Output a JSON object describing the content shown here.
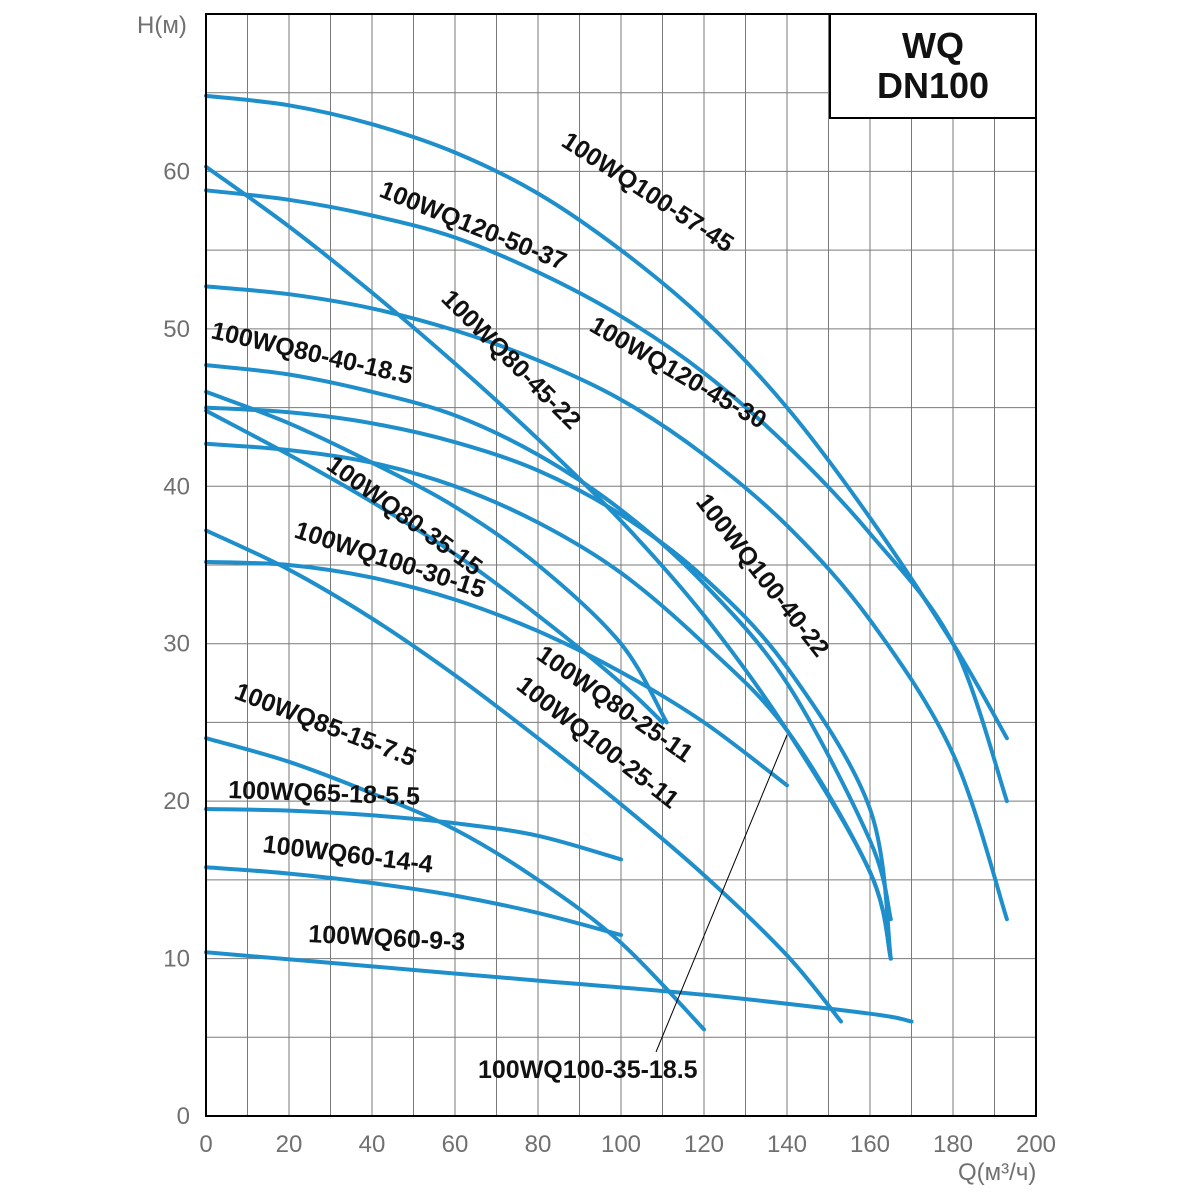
{
  "chart_data": {
    "type": "line",
    "title": "WQ",
    "subtitle": "DN100",
    "xlabel": "Q(м³/ч)",
    "ylabel": "H(м)",
    "xlim": [
      0,
      200
    ],
    "ylim": [
      0,
      70
    ],
    "x_ticks": [
      0,
      20,
      40,
      60,
      80,
      100,
      120,
      140,
      160,
      180,
      200
    ],
    "y_ticks": [
      0,
      10,
      20,
      30,
      40,
      50,
      60
    ],
    "grid": true,
    "colors": {
      "series": "#1f8fcc",
      "grid": "#7a7a7a",
      "axis": "#000000"
    },
    "series": [
      {
        "name": "100WQ100-57-45",
        "x": [
          0,
          20,
          40,
          60,
          80,
          100,
          120,
          140,
          160,
          180,
          193
        ],
        "y": [
          64.8,
          64.2,
          63.0,
          61.2,
          58.6,
          55.0,
          50.6,
          45.0,
          38.0,
          30.0,
          24.0
        ]
      },
      {
        "name": "100WQ120-50-37",
        "x": [
          0,
          20,
          40,
          60,
          80,
          100,
          120,
          140,
          160,
          180,
          193
        ],
        "y": [
          58.8,
          58.2,
          57.2,
          55.8,
          53.6,
          50.8,
          47.2,
          42.6,
          37.0,
          30.0,
          20.0
        ]
      },
      {
        "name": "100WQ80-45-22",
        "x": [
          0,
          20,
          40,
          60,
          80,
          100,
          120,
          140,
          160,
          165
        ],
        "y": [
          60.3,
          56.5,
          52.3,
          47.8,
          43.0,
          37.8,
          31.8,
          24.5,
          15.5,
          10.0
        ]
      },
      {
        "name": "100WQ120-45-30",
        "x": [
          0,
          20,
          40,
          60,
          80,
          100,
          120,
          140,
          160,
          180,
          193
        ],
        "y": [
          52.7,
          52.2,
          51.3,
          49.9,
          48.0,
          45.5,
          42.0,
          37.5,
          31.5,
          23.0,
          12.5
        ]
      },
      {
        "name": "100WQ80-40-18.5",
        "x": [
          0,
          20,
          40,
          60,
          80,
          100,
          120,
          140,
          160,
          165
        ],
        "y": [
          47.7,
          47.1,
          46.0,
          44.5,
          42.0,
          38.5,
          33.8,
          27.5,
          17.5,
          12.5
        ]
      },
      {
        "name": "100WQ100-40-22",
        "x": [
          0,
          20,
          40,
          60,
          80,
          100,
          120,
          140,
          160,
          165
        ],
        "y": [
          45.0,
          44.7,
          44.0,
          42.8,
          41.0,
          38.2,
          34.2,
          28.5,
          19.5,
          10.0
        ]
      },
      {
        "name": "100WQ100-35-18.5",
        "x": [
          0,
          20,
          40,
          60,
          80,
          100,
          120,
          140,
          160,
          165
        ],
        "y": [
          42.7,
          42.3,
          41.5,
          40.0,
          37.7,
          34.5,
          30.0,
          24.5,
          15.5,
          10.0
        ]
      },
      {
        "name": "100WQ80-35-15",
        "x": [
          0,
          20,
          40,
          60,
          80,
          100,
          111
        ],
        "y": [
          46.0,
          44.0,
          41.5,
          38.7,
          35.0,
          30.0,
          25.0
        ]
      },
      {
        "name": "100WQ100-30-15",
        "x": [
          0,
          20,
          40,
          60,
          80,
          100,
          120,
          140
        ],
        "y": [
          35.2,
          35.0,
          34.2,
          32.8,
          30.8,
          28.2,
          25.0,
          21.0
        ]
      },
      {
        "name": "100WQ80-25-11",
        "x": [
          0,
          20,
          40,
          60,
          80,
          100,
          120,
          140,
          153
        ],
        "y": [
          37.2,
          34.7,
          31.6,
          28.0,
          24.0,
          19.8,
          15.3,
          10.2,
          6.0
        ]
      },
      {
        "name": "100WQ100-25-11",
        "x": [
          0,
          20,
          40,
          60,
          80,
          100,
          110
        ],
        "y": [
          44.8,
          42.0,
          39.0,
          35.7,
          31.8,
          27.5,
          25.0
        ]
      },
      {
        "name": "100WQ85-15-7.5",
        "x": [
          0,
          20,
          40,
          60,
          80,
          100,
          120
        ],
        "y": [
          24.0,
          22.5,
          20.5,
          18.2,
          15.0,
          11.0,
          5.5
        ]
      },
      {
        "name": "100WQ65-18-5.5",
        "x": [
          0,
          20,
          40,
          60,
          80,
          100
        ],
        "y": [
          19.5,
          19.4,
          19.1,
          18.6,
          17.8,
          16.3
        ]
      },
      {
        "name": "100WQ60-14-4",
        "x": [
          0,
          20,
          40,
          60,
          80,
          100
        ],
        "y": [
          15.8,
          15.4,
          14.8,
          14.0,
          12.9,
          11.5
        ]
      },
      {
        "name": "100WQ60-9-3",
        "x": [
          0,
          40,
          80,
          120,
          160,
          170
        ],
        "y": [
          10.4,
          9.5,
          8.6,
          7.7,
          6.5,
          6.0
        ]
      }
    ],
    "annotations": [
      {
        "text": "100WQ100-57-45"
      },
      {
        "text": "100WQ120-50-37"
      },
      {
        "text": "100WQ80-45-22"
      },
      {
        "text": "100WQ120-45-30"
      },
      {
        "text": "100WQ80-40-18.5"
      },
      {
        "text": "100WQ100-40-22"
      },
      {
        "text": "100WQ80-35-15"
      },
      {
        "text": "100WQ100-30-15"
      },
      {
        "text": "100WQ80-25-11"
      },
      {
        "text": "100WQ100-25-11"
      },
      {
        "text": "100WQ85-15-7.5"
      },
      {
        "text": "100WQ65-18-5.5"
      },
      {
        "text": "100WQ60-14-4"
      },
      {
        "text": "100WQ60-9-3"
      },
      {
        "text": "100WQ100-35-18.5"
      }
    ]
  }
}
